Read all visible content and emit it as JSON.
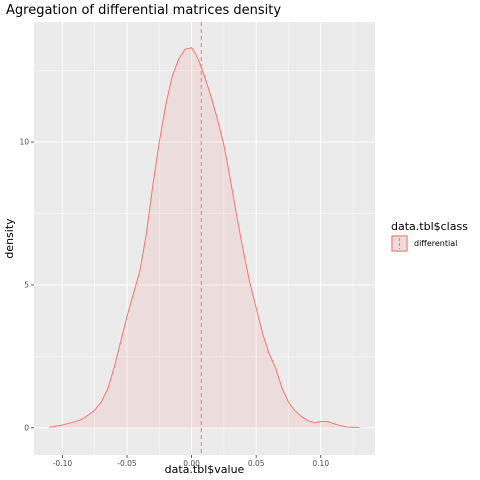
{
  "chart_data": {
    "type": "area",
    "title": "Agregation of differential matrices density",
    "xlabel": "data.tbl$value",
    "ylabel": "density",
    "xlim": [
      -0.122,
      0.142
    ],
    "ylim": [
      -0.95,
      14.2
    ],
    "x_ticks": [
      -0.1,
      -0.05,
      0.0,
      0.05,
      0.1
    ],
    "x_tick_labels": [
      "-0.10",
      "-0.05",
      "0.00",
      "0.05",
      "0.10"
    ],
    "x_minor_ticks": [
      -0.075,
      -0.025,
      0.025,
      0.075,
      0.125
    ],
    "y_ticks": [
      0,
      5,
      10
    ],
    "y_tick_labels": [
      "0",
      "5",
      "10"
    ],
    "y_minor_ticks": [
      2.5,
      7.5,
      12.5
    ],
    "grid": true,
    "legend_position": "right",
    "legend": {
      "title": "data.tbl$class",
      "entries": [
        "differential"
      ]
    },
    "mean_line_x": 0.0075,
    "series": [
      {
        "name": "differential",
        "color": "#F8766D",
        "x": [
          -0.11,
          -0.1,
          -0.09,
          -0.085,
          -0.08,
          -0.075,
          -0.07,
          -0.065,
          -0.06,
          -0.055,
          -0.05,
          -0.045,
          -0.04,
          -0.035,
          -0.03,
          -0.025,
          -0.02,
          -0.015,
          -0.01,
          -0.005,
          0.0,
          0.003,
          0.006,
          0.01,
          0.015,
          0.02,
          0.025,
          0.03,
          0.035,
          0.04,
          0.045,
          0.05,
          0.055,
          0.06,
          0.065,
          0.07,
          0.075,
          0.08,
          0.085,
          0.09,
          0.095,
          0.1,
          0.105,
          0.11,
          0.115,
          0.12,
          0.13
        ],
        "y": [
          0.02,
          0.1,
          0.22,
          0.3,
          0.45,
          0.62,
          0.9,
          1.35,
          2.1,
          3.0,
          3.9,
          4.7,
          5.5,
          6.8,
          8.5,
          10.0,
          11.3,
          12.3,
          12.9,
          13.25,
          13.3,
          13.1,
          12.8,
          12.3,
          11.6,
          10.8,
          9.9,
          8.7,
          7.4,
          6.2,
          5.1,
          4.2,
          3.3,
          2.6,
          2.1,
          1.4,
          0.9,
          0.6,
          0.4,
          0.25,
          0.18,
          0.22,
          0.22,
          0.15,
          0.08,
          0.03,
          0.01
        ]
      }
    ]
  }
}
